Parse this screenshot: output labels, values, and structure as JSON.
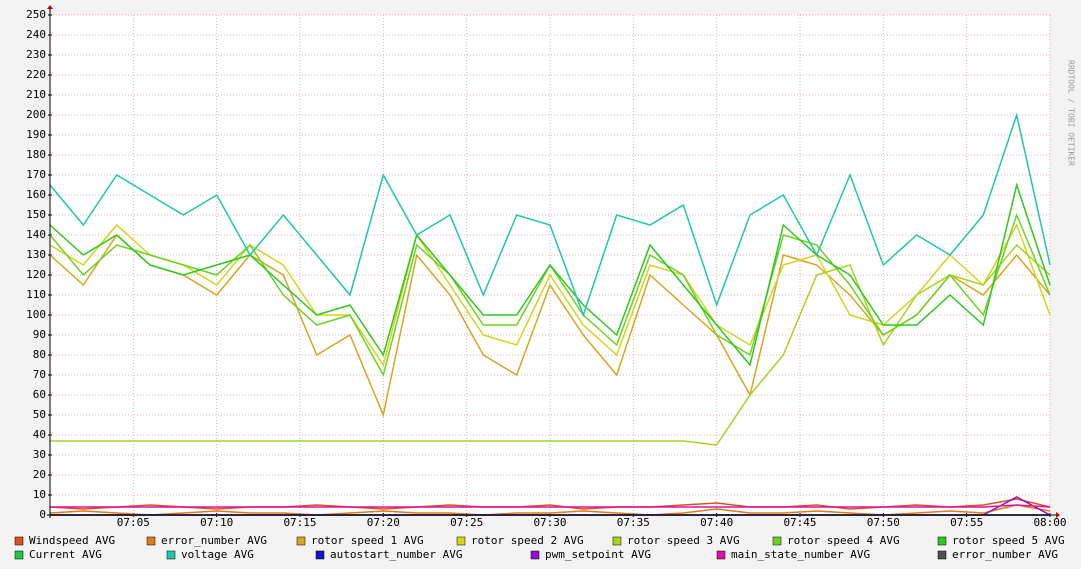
{
  "chart_data": {
    "type": "line",
    "x": [
      "07:00",
      "07:02",
      "07:04",
      "07:06",
      "07:08",
      "07:10",
      "07:12",
      "07:14",
      "07:16",
      "07:18",
      "07:20",
      "07:22",
      "07:24",
      "07:26",
      "07:28",
      "07:30",
      "07:32",
      "07:34",
      "07:36",
      "07:38",
      "07:40",
      "07:42",
      "07:44",
      "07:46",
      "07:48",
      "07:50",
      "07:52",
      "07:54",
      "07:56",
      "07:58",
      "08:00"
    ],
    "xlim": [
      "07:00",
      "08:00"
    ],
    "xticks": [
      "07:05",
      "07:10",
      "07:15",
      "07:20",
      "07:25",
      "07:30",
      "07:35",
      "07:40",
      "07:45",
      "07:50",
      "07:55",
      "08:00"
    ],
    "ylim": [
      0,
      250
    ],
    "yticks": [
      0,
      10,
      20,
      30,
      40,
      50,
      60,
      70,
      80,
      90,
      100,
      110,
      120,
      130,
      140,
      150,
      160,
      170,
      180,
      190,
      200,
      210,
      220,
      230,
      240,
      250
    ],
    "grid": true,
    "watermark": "RRDTOOL / TOBI OETIKER",
    "series": [
      {
        "name": "Windspeed AVG",
        "color": "#d9531e",
        "values": [
          4,
          3,
          4,
          5,
          4,
          3,
          4,
          4,
          5,
          4,
          3,
          4,
          5,
          4,
          4,
          5,
          3,
          4,
          4,
          5,
          6,
          4,
          4,
          5,
          3,
          4,
          5,
          4,
          5,
          8,
          4
        ]
      },
      {
        "name": "error_number AVG",
        "color": "#e07b17",
        "values": [
          1,
          2,
          1,
          0,
          1,
          2,
          1,
          1,
          0,
          1,
          2,
          1,
          1,
          0,
          1,
          1,
          2,
          1,
          0,
          1,
          3,
          1,
          1,
          2,
          1,
          0,
          1,
          2,
          1,
          5,
          2
        ]
      },
      {
        "name": "rotor speed 1 AVG",
        "color": "#d9a520",
        "values": [
          130,
          115,
          140,
          125,
          120,
          110,
          130,
          120,
          80,
          90,
          50,
          130,
          110,
          80,
          70,
          115,
          90,
          70,
          120,
          105,
          90,
          60,
          130,
          125,
          110,
          90,
          100,
          120,
          110,
          130,
          110
        ]
      },
      {
        "name": "rotor speed 2 AVG",
        "color": "#d4d420",
        "values": [
          135,
          125,
          145,
          130,
          125,
          115,
          135,
          125,
          100,
          100,
          75,
          140,
          115,
          90,
          85,
          120,
          95,
          80,
          125,
          120,
          95,
          85,
          125,
          130,
          100,
          95,
          110,
          130,
          115,
          145,
          100
        ]
      },
      {
        "name": "rotor speed 3 AVG",
        "color": "#a6d420",
        "values": [
          37,
          37,
          37,
          37,
          37,
          37,
          37,
          37,
          37,
          37,
          37,
          37,
          37,
          37,
          37,
          37,
          37,
          37,
          37,
          37,
          35,
          60,
          80,
          120,
          125,
          85,
          110,
          120,
          115,
          135,
          120
        ]
      },
      {
        "name": "rotor speed 4 AVG",
        "color": "#6cd420",
        "values": [
          140,
          120,
          135,
          130,
          125,
          120,
          135,
          110,
          95,
          100,
          70,
          135,
          120,
          95,
          95,
          125,
          100,
          85,
          130,
          120,
          90,
          80,
          140,
          135,
          115,
          90,
          100,
          120,
          100,
          150,
          110
        ]
      },
      {
        "name": "rotor speed 5 AVG",
        "color": "#2ec81e",
        "values": [
          145,
          130,
          140,
          125,
          120,
          125,
          130,
          115,
          100,
          105,
          80,
          140,
          120,
          100,
          100,
          125,
          105,
          90,
          135,
          115,
          95,
          75,
          145,
          130,
          120,
          95,
          95,
          110,
          95,
          165,
          115
        ]
      },
      {
        "name": "Current AVG",
        "color": "#1ec850",
        "values": [
          0,
          0,
          0,
          0,
          0,
          0,
          0,
          0,
          0,
          0,
          0,
          0,
          0,
          0,
          0,
          0,
          0,
          0,
          0,
          0,
          0,
          0,
          0,
          0,
          0,
          0,
          0,
          0,
          0,
          0,
          0
        ]
      },
      {
        "name": "voltage AVG",
        "color": "#1ec8a8",
        "values": [
          165,
          145,
          170,
          160,
          150,
          160,
          130,
          150,
          130,
          110,
          170,
          140,
          150,
          110,
          150,
          145,
          100,
          150,
          145,
          155,
          105,
          150,
          160,
          130,
          170,
          125,
          140,
          130,
          150,
          200,
          125
        ]
      },
      {
        "name": "autostart_number AVG",
        "color": "#2010c8",
        "values": [
          0,
          0,
          0,
          0,
          0,
          0,
          0,
          0,
          0,
          0,
          0,
          0,
          0,
          0,
          0,
          0,
          0,
          0,
          0,
          0,
          0,
          0,
          0,
          0,
          0,
          0,
          0,
          0,
          0,
          0,
          0
        ]
      },
      {
        "name": "pwm_setpoint AVG",
        "color": "#9010d0",
        "values": [
          0,
          0,
          0,
          0,
          0,
          0,
          0,
          0,
          0,
          0,
          0,
          0,
          0,
          0,
          0,
          0,
          0,
          0,
          0,
          0,
          0,
          0,
          0,
          0,
          0,
          0,
          0,
          0,
          0,
          9,
          0
        ]
      },
      {
        "name": "main_state_number AVG",
        "color": "#e010a0",
        "values": [
          4,
          4,
          4,
          4,
          4,
          4,
          4,
          4,
          4,
          4,
          4,
          4,
          4,
          4,
          4,
          4,
          4,
          4,
          4,
          4,
          4,
          4,
          4,
          4,
          4,
          4,
          4,
          4,
          4,
          5,
          4
        ]
      },
      {
        "name": "error_number AVG",
        "color": "#505050",
        "values": [
          0,
          0,
          0,
          0,
          0,
          0,
          0,
          0,
          0,
          0,
          0,
          0,
          0,
          0,
          0,
          0,
          0,
          0,
          0,
          0,
          0,
          0,
          0,
          0,
          0,
          0,
          0,
          0,
          0,
          0,
          0
        ]
      }
    ]
  }
}
